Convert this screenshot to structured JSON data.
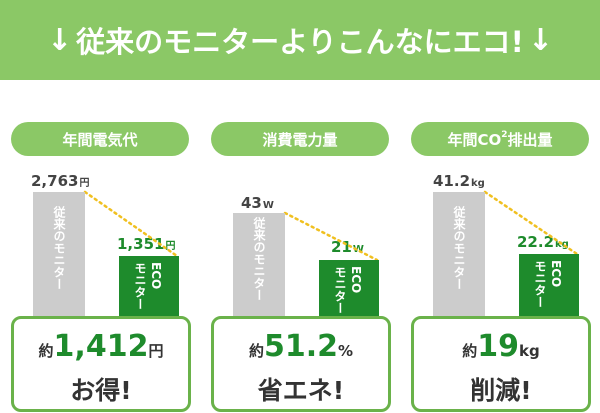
{
  "banner": {
    "arrow_left": "↓",
    "text": "従来のモニターよりこんなにエコ!",
    "arrow_right": "↓"
  },
  "colors": {
    "banner_green": "#8bc866",
    "eco_green": "#1e8b2c",
    "conventional_gray": "#cccccc",
    "connector_dots": "#f0c020"
  },
  "chart_data": [
    {
      "type": "bar",
      "title": "年間電気代",
      "categories": [
        "従来のモニター",
        "ECOモニター"
      ],
      "values": [
        2763,
        1351
      ],
      "value_labels": [
        "2,763",
        "1,351"
      ],
      "unit": "円",
      "savings": {
        "prefix": "約",
        "value": "1,412",
        "unit": "円",
        "caption": "お得!"
      }
    },
    {
      "type": "bar",
      "title": "消費電力量",
      "categories": [
        "従来のモニター",
        "ECOモニター"
      ],
      "values": [
        43,
        21
      ],
      "value_labels": [
        "43",
        "21"
      ],
      "unit": "W",
      "savings": {
        "prefix": "約",
        "value": "51.2",
        "unit": "%",
        "caption": "省エネ!"
      }
    },
    {
      "type": "bar",
      "title_main": "年間CO",
      "title_sup": "2",
      "title_rest": "排出量",
      "categories": [
        "従来のモニター",
        "ECOモニター"
      ],
      "values": [
        41.2,
        22.2
      ],
      "value_labels": [
        "41.2",
        "22.2"
      ],
      "unit": "kg",
      "savings": {
        "prefix": "約",
        "value": "19",
        "unit": "kg",
        "caption": "削減!"
      }
    }
  ],
  "bar_labels": {
    "conventional": "従来のモニター",
    "eco_line1": "ECO",
    "eco_line2": "モニター"
  }
}
